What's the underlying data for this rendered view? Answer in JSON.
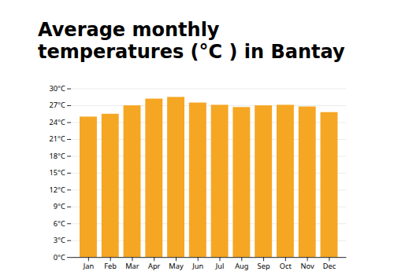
{
  "chart_data": {
    "type": "bar",
    "title": "Average monthly temperatures (°C ) in Bantay",
    "categories": [
      "Jan",
      "Feb",
      "Mar",
      "Apr",
      "May",
      "Jun",
      "Jul",
      "Aug",
      "Sep",
      "Oct",
      "Nov",
      "Dec"
    ],
    "values": [
      25.0,
      25.5,
      27.0,
      28.2,
      28.5,
      27.5,
      27.1,
      26.7,
      27.0,
      27.1,
      26.8,
      25.8
    ],
    "color": "#F5A623",
    "ylim": [
      0,
      30
    ],
    "yticks": [
      {
        "value": 0,
        "label": "0°C"
      },
      {
        "value": 3,
        "label": "3°C"
      },
      {
        "value": 6,
        "label": "6°C"
      },
      {
        "value": 9,
        "label": "9°C"
      },
      {
        "value": 12,
        "label": "12°C"
      },
      {
        "value": 15,
        "label": "15°C"
      },
      {
        "value": 18,
        "label": "18°C"
      },
      {
        "value": 21,
        "label": "21°C"
      },
      {
        "value": 24,
        "label": "24°C"
      },
      {
        "value": 27,
        "label": "27°C"
      },
      {
        "value": 30,
        "label": "30°C"
      }
    ],
    "grid": true
  }
}
